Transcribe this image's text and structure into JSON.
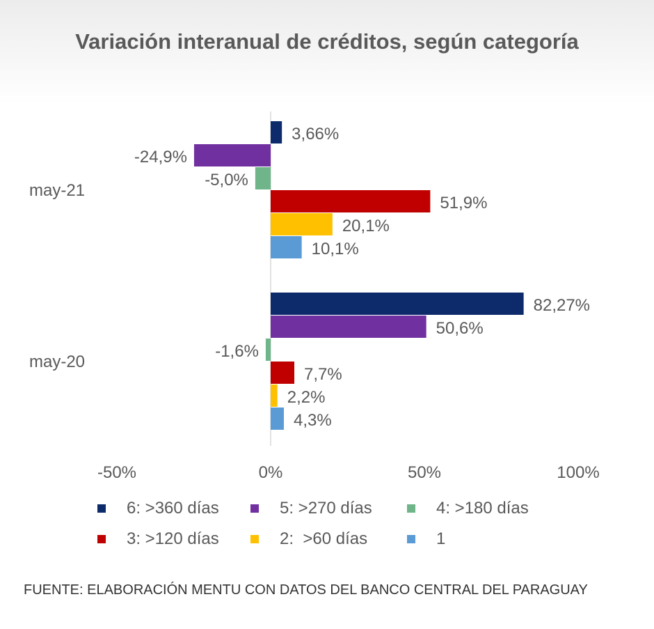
{
  "chart_data": {
    "type": "bar",
    "orientation": "horizontal",
    "title": "Variación interanual de créditos, según categoría",
    "categories": [
      "may-21",
      "may-20"
    ],
    "xlim": [
      -50,
      100
    ],
    "x_ticks": [
      "-50%",
      "0%",
      "50%",
      "100%"
    ],
    "x_tick_values": [
      -50,
      0,
      50,
      100
    ],
    "grid": false,
    "legend_position": "bottom",
    "series": [
      {
        "name": "6: >360 días",
        "color": "#0d2a6b",
        "values": [
          3.66,
          82.27
        ],
        "labels": [
          "3,66%",
          "82,27%"
        ]
      },
      {
        "name": "5: >270 días",
        "color": "#7030a0",
        "values": [
          -24.9,
          50.6
        ],
        "labels": [
          "-24,9%",
          "50,6%"
        ]
      },
      {
        "name": "4: >180 días",
        "color": "#70b58a",
        "values": [
          -5.0,
          -1.6
        ],
        "labels": [
          "-5,0%",
          "-1,6%"
        ]
      },
      {
        "name": "3: >120 días",
        "color": "#c00000",
        "values": [
          51.9,
          7.7
        ],
        "labels": [
          "51,9%",
          "7,7%"
        ]
      },
      {
        "name": "2:  >60 días",
        "color": "#ffc000",
        "values": [
          20.1,
          2.2
        ],
        "labels": [
          "20,1%",
          "2,2%"
        ]
      },
      {
        "name": "1",
        "color": "#5b9bd5",
        "values": [
          10.1,
          4.3
        ],
        "labels": [
          "10,1%",
          "4,3%"
        ]
      }
    ]
  },
  "source_note": "Fuente: Elaboración Mentu con datos del Banco Central del Paraguay"
}
